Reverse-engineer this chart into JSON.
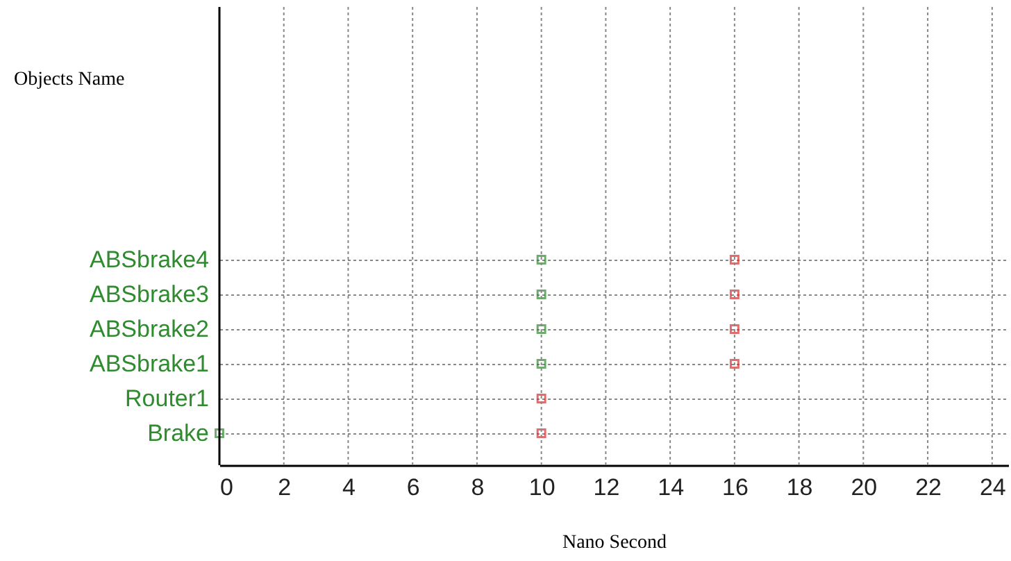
{
  "chart_data": {
    "type": "scatter",
    "orientation": "horizontal",
    "xlabel": "Nano Second",
    "annotations": [
      "Objects Name"
    ],
    "categories": [
      "ABSbrake4",
      "ABSbrake3",
      "ABSbrake2",
      "ABSbrake1",
      "Router1",
      "Brake"
    ],
    "series": [
      {
        "color": "#2e8b2e",
        "values": [
          10,
          10,
          10,
          10,
          null,
          0
        ]
      },
      {
        "color": "#d83030",
        "values": [
          16,
          16,
          16,
          16,
          10,
          10
        ]
      }
    ],
    "xlim": [
      0,
      24.5
    ],
    "xticks": [
      0,
      2,
      4,
      6,
      8,
      10,
      12,
      14,
      16,
      18,
      20,
      22,
      24
    ],
    "grid": true,
    "marker": "square"
  }
}
